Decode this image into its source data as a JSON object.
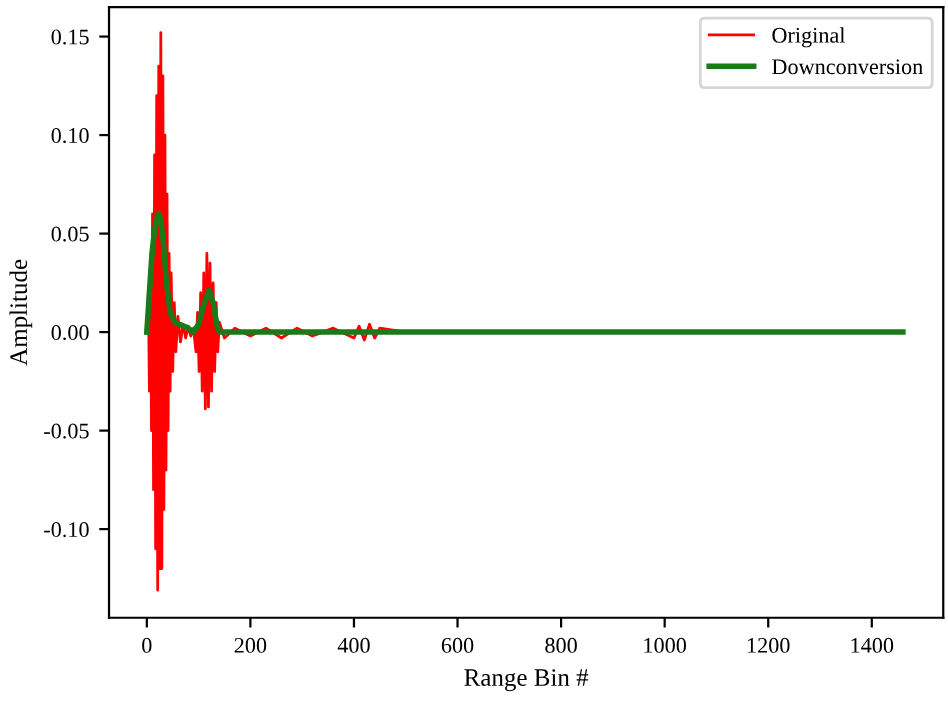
{
  "chart_data": {
    "type": "line",
    "xlabel": "Range Bin #",
    "ylabel": "Amplitude",
    "xlim": [
      -73,
      1538
    ],
    "ylim": [
      -0.145,
      0.165
    ],
    "xticks": [
      0,
      200,
      400,
      600,
      800,
      1000,
      1200,
      1400
    ],
    "yticks": [
      {
        "value": -0.1,
        "label": "-0.10"
      },
      {
        "value": -0.05,
        "label": "-0.05"
      },
      {
        "value": 0,
        "label": "0.00"
      },
      {
        "value": 0.05,
        "label": "0.05"
      },
      {
        "value": 0.1,
        "label": "0.10"
      },
      {
        "value": 0.15,
        "label": "0.15"
      }
    ],
    "legend": "top right",
    "grid": false,
    "series": [
      {
        "name": "Original",
        "color": "#ff0000",
        "x": [
          0,
          3,
          5,
          7,
          9,
          11,
          13,
          15,
          17,
          19,
          21,
          23,
          25,
          27,
          29,
          31,
          33,
          35,
          37,
          39,
          41,
          43,
          45,
          47,
          50,
          53,
          56,
          60,
          65,
          70,
          75,
          80,
          85,
          90,
          95,
          98,
          101,
          104,
          107,
          110,
          113,
          116,
          119,
          122,
          125,
          128,
          131,
          134,
          137,
          140,
          150,
          170,
          200,
          230,
          260,
          290,
          320,
          360,
          400,
          410,
          420,
          430,
          440,
          450,
          500,
          1460
        ],
        "values": [
          0.0,
          0.02,
          -0.03,
          0.03,
          -0.05,
          0.06,
          -0.08,
          0.09,
          -0.11,
          0.12,
          -0.131,
          0.135,
          -0.12,
          0.152,
          -0.12,
          0.13,
          -0.09,
          0.1,
          -0.07,
          0.07,
          -0.05,
          0.04,
          -0.03,
          0.03,
          -0.02,
          0.015,
          -0.01,
          0.008,
          -0.005,
          0.004,
          -0.003,
          0.003,
          -0.002,
          0.002,
          -0.01,
          0.01,
          -0.02,
          0.02,
          -0.03,
          0.03,
          -0.039,
          0.04,
          -0.038,
          0.035,
          -0.03,
          0.025,
          -0.02,
          0.015,
          -0.01,
          0.005,
          -0.003,
          0.002,
          -0.002,
          0.002,
          -0.003,
          0.002,
          -0.002,
          0.002,
          -0.003,
          0.003,
          -0.004,
          0.004,
          -0.003,
          0.002,
          0.0,
          0.0
        ]
      },
      {
        "name": "Downconversion",
        "color": "#1a7a1a",
        "x": [
          0,
          5,
          10,
          15,
          20,
          23,
          27,
          32,
          38,
          45,
          54,
          80,
          90,
          100,
          110,
          120,
          128,
          135,
          140,
          1460
        ],
        "values": [
          0.0,
          0.02,
          0.04,
          0.052,
          0.058,
          0.06,
          0.057,
          0.045,
          0.025,
          0.01,
          0.005,
          0.002,
          0.0,
          0.004,
          0.014,
          0.021,
          0.015,
          0.004,
          0.0,
          0.0
        ]
      }
    ]
  }
}
